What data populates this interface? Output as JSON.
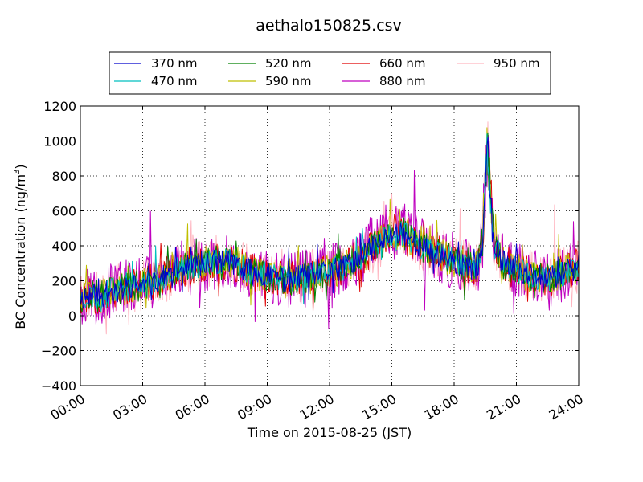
{
  "chart_data": {
    "type": "line",
    "title": "aethalo150825.csv",
    "xlabel": "Time on 2015-08-25 (JST)",
    "ylabel": "BC Concentration (ng/m",
    "ylabel_sup": "3",
    "ylabel_end": ")",
    "xlim": [
      0,
      24
    ],
    "ylim": [
      -400,
      1200
    ],
    "grid": true,
    "legend": "top-center",
    "x_ticks": [
      0,
      3,
      6,
      9,
      12,
      15,
      18,
      21,
      24
    ],
    "x_tick_labels": [
      "00:00",
      "03:00",
      "06:00",
      "09:00",
      "12:00",
      "15:00",
      "18:00",
      "21:00",
      "24:00"
    ],
    "y_ticks": [
      -400,
      -200,
      0,
      200,
      400,
      600,
      800,
      1000,
      1200
    ],
    "y_tick_labels": [
      "−400",
      "−200",
      "0",
      "200",
      "400",
      "600",
      "800",
      "1000",
      "1200"
    ],
    "series": [
      {
        "name": "370 nm",
        "color": "#0000cc",
        "amp": 0.55,
        "seed": 11
      },
      {
        "name": "470 nm",
        "color": "#00bfbf",
        "amp": 0.6,
        "seed": 23
      },
      {
        "name": "520 nm",
        "color": "#008000",
        "amp": 0.7,
        "seed": 37
      },
      {
        "name": "590 nm",
        "color": "#bfbf00",
        "amp": 0.75,
        "seed": 41
      },
      {
        "name": "660 nm",
        "color": "#e00000",
        "amp": 0.85,
        "seed": 53
      },
      {
        "name": "880 nm",
        "color": "#bf00bf",
        "amp": 1.25,
        "seed": 67
      },
      {
        "name": "950 nm",
        "color": "#ffb6c1",
        "amp": 1.15,
        "seed": 79
      }
    ],
    "baseline": [
      [
        0.0,
        100
      ],
      [
        0.5,
        120
      ],
      [
        1.0,
        110
      ],
      [
        1.5,
        140
      ],
      [
        2.0,
        150
      ],
      [
        2.5,
        170
      ],
      [
        3.0,
        170
      ],
      [
        3.5,
        200
      ],
      [
        4.0,
        220
      ],
      [
        4.5,
        250
      ],
      [
        5.0,
        270
      ],
      [
        5.5,
        290
      ],
      [
        6.0,
        300
      ],
      [
        6.5,
        310
      ],
      [
        7.0,
        320
      ],
      [
        7.5,
        300
      ],
      [
        8.0,
        260
      ],
      [
        8.5,
        240
      ],
      [
        9.0,
        230
      ],
      [
        9.5,
        220
      ],
      [
        10.0,
        200
      ],
      [
        10.5,
        220
      ],
      [
        11.0,
        230
      ],
      [
        11.5,
        240
      ],
      [
        12.0,
        250
      ],
      [
        12.5,
        270
      ],
      [
        13.0,
        300
      ],
      [
        13.5,
        340
      ],
      [
        14.0,
        380
      ],
      [
        14.5,
        420
      ],
      [
        15.0,
        470
      ],
      [
        15.5,
        480
      ],
      [
        16.0,
        430
      ],
      [
        16.5,
        390
      ],
      [
        17.0,
        360
      ],
      [
        17.5,
        340
      ],
      [
        18.0,
        310
      ],
      [
        18.5,
        290
      ],
      [
        19.0,
        270
      ],
      [
        19.2,
        300
      ],
      [
        19.4,
        500
      ],
      [
        19.5,
        800
      ],
      [
        19.6,
        950
      ],
      [
        19.75,
        700
      ],
      [
        19.9,
        450
      ],
      [
        20.2,
        330
      ],
      [
        20.5,
        290
      ],
      [
        21.0,
        260
      ],
      [
        21.5,
        240
      ],
      [
        22.0,
        220
      ],
      [
        22.5,
        210
      ],
      [
        23.0,
        230
      ],
      [
        23.5,
        260
      ],
      [
        24.0,
        280
      ]
    ]
  }
}
